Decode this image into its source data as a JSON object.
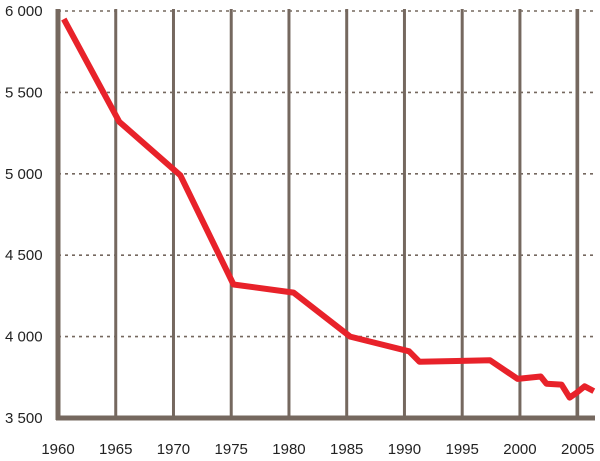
{
  "chart_data": {
    "type": "line",
    "title": "",
    "xlabel": "",
    "ylabel": "",
    "xlim": [
      1960,
      2006.5
    ],
    "ylim": [
      3500,
      6000
    ],
    "x_ticks": [
      1960,
      1965,
      1970,
      1975,
      1980,
      1985,
      1990,
      1995,
      2000,
      2005
    ],
    "x_tick_labels": [
      "1960",
      "1965",
      "1970",
      "1975",
      "1980",
      "1985",
      "1990",
      "1995",
      "2000",
      "2005"
    ],
    "y_ticks": [
      3500,
      4000,
      4500,
      5000,
      5500,
      6000
    ],
    "y_tick_labels": [
      "3 500",
      "4 000",
      "4 500",
      "5 000",
      "5 500",
      "6 000"
    ],
    "grid": {
      "vertical": "solid",
      "horizontal": "dashed"
    },
    "series": [
      {
        "color": "#e8222a",
        "x": [
          1960.5,
          1965.3,
          1970.6,
          1975.2,
          1980.4,
          1985.3,
          1990.4,
          1991.3,
          1994.5,
          1997.4,
          1999.8,
          2001.8,
          2002.3,
          2003.6,
          2004.3,
          2004.9,
          2005.6,
          2006.4
        ],
        "y": [
          5950,
          5320,
          4990,
          4320,
          4270,
          4000,
          3910,
          3845,
          3850,
          3855,
          3740,
          3755,
          3710,
          3705,
          3625,
          3655,
          3695,
          3665
        ]
      }
    ]
  },
  "colors": {
    "axis": "#75685f",
    "vgrid": "#75685f",
    "hgrid": "#75685f",
    "line": "#e8222a",
    "text": "#222222"
  }
}
